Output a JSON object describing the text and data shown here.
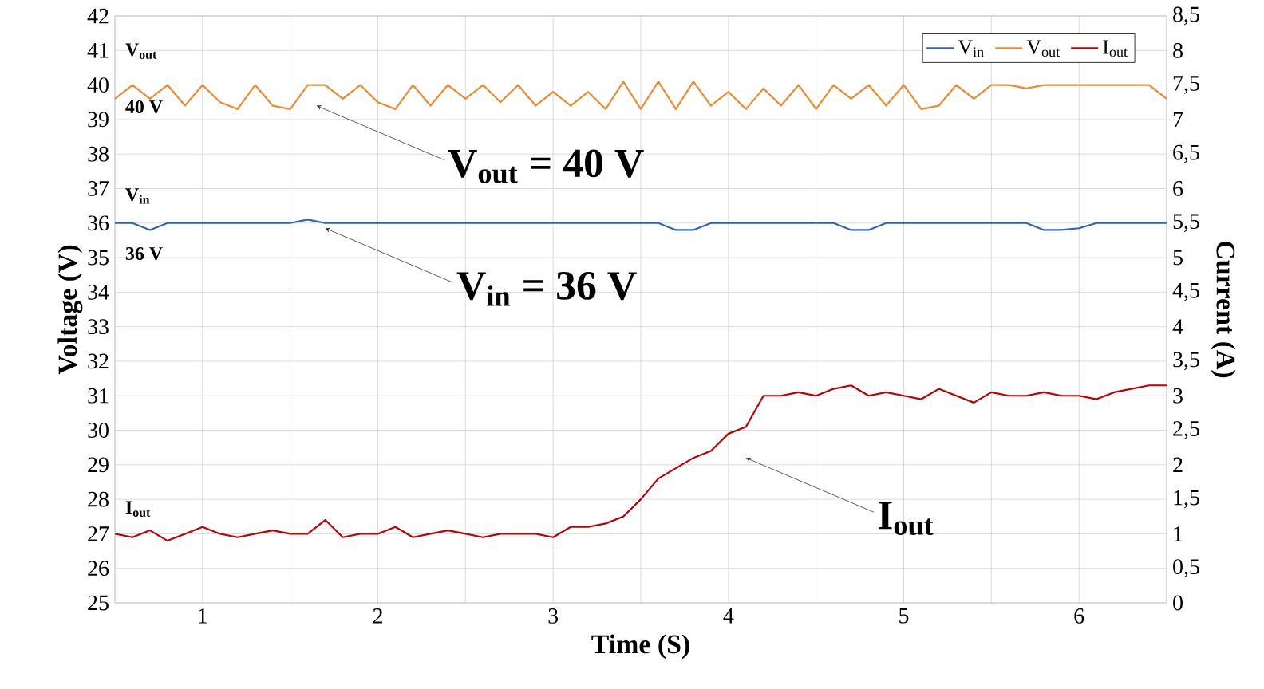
{
  "chart_data": {
    "type": "line",
    "xlabel": "Time (S)",
    "ylabel": "Voltage (V)",
    "y2label": "Current (A)",
    "x": [
      0.5,
      0.6,
      0.7,
      0.8,
      0.9,
      1.0,
      1.1,
      1.2,
      1.3,
      1.4,
      1.5,
      1.6,
      1.7,
      1.8,
      1.9,
      2.0,
      2.1,
      2.2,
      2.3,
      2.4,
      2.5,
      2.6,
      2.7,
      2.8,
      2.9,
      3.0,
      3.1,
      3.2,
      3.3,
      3.4,
      3.5,
      3.6,
      3.7,
      3.8,
      3.9,
      4.0,
      4.1,
      4.2,
      4.3,
      4.4,
      4.5,
      4.6,
      4.7,
      4.8,
      4.9,
      5.0,
      5.1,
      5.2,
      5.3,
      5.4,
      5.5,
      5.6,
      5.7,
      5.8,
      5.9,
      6.0,
      6.1,
      6.2,
      6.3,
      6.4,
      6.5
    ],
    "series": [
      {
        "name": "V$_{in}$",
        "color": "#2e64b8",
        "values": [
          36,
          36,
          35.8,
          36,
          36,
          36,
          36,
          36,
          36,
          36,
          36,
          36.1,
          36,
          36,
          36,
          36,
          36,
          36,
          36,
          36,
          36,
          36,
          36,
          36,
          36,
          36,
          36,
          36,
          36,
          36,
          36,
          36,
          35.8,
          35.8,
          36,
          36,
          36,
          36,
          36,
          36,
          36,
          36,
          35.8,
          35.8,
          36,
          36,
          36,
          36,
          36,
          36,
          36,
          36,
          36,
          35.8,
          35.8,
          35.85,
          36,
          36,
          36,
          36,
          36
        ]
      },
      {
        "name": "V$_{out}$",
        "color": "#f08a2c",
        "values": [
          39.6,
          40,
          39.6,
          40,
          39.4,
          40,
          39.5,
          39.3,
          40,
          39.4,
          39.3,
          40,
          40,
          39.6,
          40,
          39.5,
          39.3,
          40,
          39.4,
          40,
          39.6,
          40,
          39.5,
          40,
          39.4,
          39.8,
          39.4,
          39.8,
          39.3,
          40.1,
          39.3,
          40.1,
          39.3,
          40.1,
          39.4,
          39.8,
          39.3,
          39.9,
          39.4,
          40,
          39.3,
          40,
          39.6,
          40,
          39.4,
          40,
          39.3,
          39.4,
          40,
          39.6,
          40,
          40,
          39.9,
          40,
          40,
          40,
          40,
          40,
          40,
          40,
          39.6
        ]
      },
      {
        "name": "I$_{out}$",
        "color": "#c00000",
        "axis": "y2",
        "values": [
          1.0,
          0.95,
          1.05,
          0.9,
          1.0,
          1.1,
          1.0,
          0.95,
          1.0,
          1.05,
          1.0,
          1.0,
          1.2,
          0.95,
          1.0,
          1.0,
          1.1,
          0.95,
          1.0,
          1.05,
          1.0,
          0.95,
          1.0,
          1.0,
          1.0,
          0.95,
          1.1,
          1.1,
          1.15,
          1.25,
          1.5,
          1.8,
          1.95,
          2.1,
          2.2,
          2.45,
          2.55,
          3.0,
          3.0,
          3.05,
          3.0,
          3.1,
          3.15,
          3.0,
          3.05,
          3.0,
          2.95,
          3.1,
          3.0,
          2.9,
          3.05,
          3.0,
          3.0,
          3.05,
          3.0,
          3.0,
          2.95,
          3.05,
          3.1,
          3.15,
          3.15
        ]
      }
    ],
    "xlim": [
      0.5,
      6.5
    ],
    "xticks": [
      {
        "value": 0.5,
        "label": null
      },
      1,
      {
        "value": 1.5,
        "label": null
      },
      2,
      {
        "value": 2.5,
        "label": null
      },
      3,
      {
        "value": 3.5,
        "label": null
      },
      4,
      {
        "value": 4.5,
        "label": null
      },
      5,
      {
        "value": 5.5,
        "label": null
      },
      6,
      {
        "value": 6.5,
        "label": null
      }
    ],
    "ylim": [
      25,
      42
    ],
    "yticks": [
      25,
      26,
      27,
      28,
      29,
      30,
      31,
      32,
      33,
      34,
      35,
      36,
      37,
      38,
      39,
      40,
      41,
      42
    ],
    "y2lim": [
      0,
      8.5
    ],
    "y2ticks": [
      0,
      {
        "value": 0.5,
        "label": "0,5"
      },
      1,
      {
        "value": 1.5,
        "label": "1,5"
      },
      2,
      {
        "value": 2.5,
        "label": "2,5"
      },
      3,
      {
        "value": 3.5,
        "label": "3,5"
      },
      4,
      {
        "value": 4.5,
        "label": "4,5"
      },
      5,
      {
        "value": 5.5,
        "label": "5,5"
      },
      6,
      {
        "value": 6.5,
        "label": "6,5"
      },
      7,
      {
        "value": 7.5,
        "label": "7,5"
      },
      8,
      {
        "value": 8.5,
        "label": "8,5"
      }
    ],
    "annotations": [
      "V$_{out}$",
      "40 V",
      "V$_{in}$",
      "36 V",
      "I$_{out}$",
      {
        "text": "V$_{out}$ = 40 V",
        "x": 1.65,
        "y": 39.4
      },
      {
        "text": "V$_{in}$ = 36 V",
        "x": 1.7,
        "y": 35.85
      },
      {
        "text": "I$_{out}$",
        "x": 4.1,
        "y": 29.2
      }
    ],
    "grid": true,
    "legend": "top right",
    "marker": "none",
    "line_style": "solid"
  }
}
